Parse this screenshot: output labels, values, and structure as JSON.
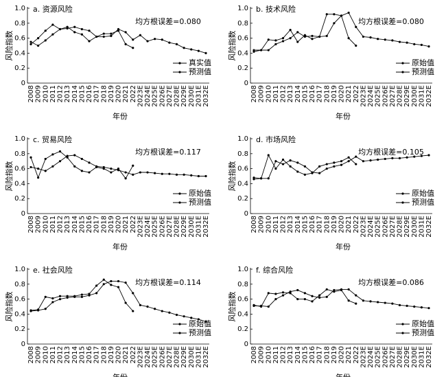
{
  "chart_data": [
    {
      "type": "line",
      "title": "a. 资源风险",
      "annotation": "均方根误差=0.080",
      "x_label": "年份",
      "y_label": "风险指数",
      "categories": [
        "2008",
        "2009",
        "2010",
        "2011",
        "2012",
        "2013",
        "2014",
        "2015",
        "2016",
        "2017",
        "2018",
        "2019",
        "2020",
        "2021",
        "2022",
        "2023E",
        "2024E",
        "2025E",
        "2026E",
        "2027E",
        "2028E",
        "2029E",
        "2030E",
        "2031E",
        "2032E"
      ],
      "series": [
        {
          "name": "真实值",
          "color": "#000000",
          "values": [
            0.52,
            0.6,
            0.7,
            0.78,
            0.72,
            0.75,
            0.68,
            0.65,
            0.56,
            0.62,
            0.66,
            0.66,
            0.7,
            0.52,
            0.47,
            null,
            null,
            null,
            null,
            null,
            null,
            null,
            null,
            null,
            null
          ]
        },
        {
          "name": "预测值",
          "color": "#000000",
          "values": [
            0.55,
            0.5,
            0.57,
            0.65,
            0.72,
            0.73,
            0.75,
            0.72,
            0.7,
            0.62,
            0.62,
            0.63,
            0.72,
            0.68,
            0.58,
            0.64,
            0.56,
            0.59,
            0.58,
            0.54,
            0.52,
            0.47,
            0.45,
            0.43,
            0.4
          ]
        }
      ],
      "ylim": [
        0,
        1
      ],
      "yticks": [
        0,
        0.2,
        0.4,
        0.6,
        0.8,
        {
          "value": 1,
          "label": "1.0"
        }
      ],
      "legend": "lower right"
    },
    {
      "type": "line",
      "title": "b. 技术风险",
      "annotation": "均方根误差=0.080",
      "x_label": "年份",
      "y_label": "风险指数",
      "categories": [
        "2008",
        "2009",
        "2010",
        "2011",
        "2012",
        "2013",
        "2014",
        "2015",
        "2016",
        "2017",
        "2018",
        "2019",
        "2020",
        "2021",
        "2022",
        "2023E",
        "2024E",
        "2025E",
        "2026E",
        "2027E",
        "2028E",
        "2029E",
        "2030E",
        "2031E",
        "2032E"
      ],
      "series": [
        {
          "name": "原始值",
          "color": "#000000",
          "values": [
            0.44,
            0.44,
            0.58,
            0.57,
            0.6,
            0.71,
            0.55,
            0.64,
            0.59,
            0.62,
            0.92,
            0.92,
            0.9,
            0.6,
            0.5,
            null,
            null,
            null,
            null,
            null,
            null,
            null,
            null,
            null,
            null
          ]
        },
        {
          "name": "预测值",
          "color": "#000000",
          "values": [
            0.42,
            0.44,
            0.44,
            0.52,
            0.56,
            0.6,
            0.68,
            0.62,
            0.63,
            0.62,
            0.63,
            0.8,
            0.9,
            0.94,
            0.75,
            0.62,
            0.61,
            0.59,
            0.58,
            0.57,
            0.55,
            0.54,
            0.52,
            0.51,
            0.49
          ]
        }
      ],
      "ylim": [
        0,
        1
      ],
      "yticks": [
        0,
        0.2,
        0.4,
        0.6,
        0.8,
        {
          "value": 1,
          "label": "1.0"
        }
      ],
      "legend": "lower right"
    },
    {
      "type": "line",
      "title": "c. 贸易风险",
      "annotation": "均方根误差=0.117",
      "x_label": "年份",
      "y_label": "风险指数",
      "categories": [
        "2008",
        "2009",
        "2010",
        "2011",
        "2012",
        "2013",
        "2014",
        "2015",
        "2016",
        "2017",
        "2018",
        "2019",
        "2020",
        "2021",
        "2022",
        "2023E",
        "2024E",
        "2025E",
        "2026E",
        "2027E",
        "2028E",
        "2029E",
        "2030E",
        "2031E",
        "2032E"
      ],
      "series": [
        {
          "name": "原始值",
          "color": "#000000",
          "values": [
            0.75,
            0.48,
            0.73,
            0.79,
            0.83,
            0.75,
            0.63,
            0.57,
            0.55,
            0.62,
            0.6,
            0.55,
            0.6,
            0.47,
            0.64,
            null,
            null,
            null,
            null,
            null,
            null,
            null,
            null,
            null,
            null
          ]
        },
        {
          "name": "预测值",
          "color": "#000000",
          "values": [
            0.62,
            0.6,
            0.57,
            0.63,
            0.7,
            0.77,
            0.78,
            0.73,
            0.68,
            0.63,
            0.62,
            0.6,
            0.58,
            0.55,
            0.52,
            0.55,
            0.55,
            0.54,
            0.53,
            0.53,
            0.52,
            0.52,
            0.51,
            0.5,
            0.5
          ]
        }
      ],
      "ylim": [
        0,
        1
      ],
      "yticks": [
        0,
        0.2,
        0.4,
        0.6,
        0.8,
        {
          "value": 1,
          "label": "1.0"
        }
      ],
      "legend": "lower right"
    },
    {
      "type": "line",
      "title": "d. 市场风险",
      "annotation": "均方根误差=0.105",
      "x_label": "年份",
      "y_label": "风险指数",
      "categories": [
        "2008",
        "2009",
        "2010",
        "2011",
        "2012",
        "2013",
        "2014",
        "2015",
        "2016",
        "2017",
        "2018",
        "2019",
        "2020",
        "2021",
        "2022",
        "2023E",
        "2024E",
        "2025E",
        "2026E",
        "2027E",
        "2028E",
        "2029E",
        "2030E",
        "2031E",
        "2032E"
      ],
      "series": [
        {
          "name": "原始值",
          "color": "#000000",
          "values": [
            0.48,
            0.47,
            0.78,
            0.6,
            0.72,
            0.63,
            0.56,
            0.52,
            0.54,
            0.63,
            0.66,
            0.68,
            0.7,
            0.75,
            0.66,
            null,
            null,
            null,
            null,
            null,
            null,
            null,
            null,
            null,
            null
          ]
        },
        {
          "name": "预测值",
          "color": "#000000",
          "values": [
            0.46,
            0.47,
            0.47,
            0.7,
            0.66,
            0.71,
            0.68,
            0.63,
            0.55,
            0.54,
            0.6,
            0.63,
            0.65,
            0.7,
            0.76,
            0.7,
            0.71,
            0.72,
            0.73,
            0.74,
            0.74,
            0.75,
            0.76,
            0.77,
            0.78
          ]
        }
      ],
      "ylim": [
        0,
        1
      ],
      "yticks": [
        0,
        0.2,
        0.4,
        0.6,
        0.8,
        {
          "value": 1,
          "label": "1.0"
        }
      ],
      "legend": "lower right"
    },
    {
      "type": "line",
      "title": "e. 社会风险",
      "annotation": "均方根误差=0.114",
      "x_label": "年份",
      "y_label": "风险指数",
      "categories": [
        "2008",
        "2009",
        "2010",
        "2011",
        "2012",
        "2013",
        "2014",
        "2015",
        "2016",
        "2017",
        "2018",
        "2019",
        "2020",
        "2021",
        "2022",
        "2023E",
        "2024E",
        "2025E",
        "2026E",
        "2027E",
        "2028E",
        "2029E",
        "2030E",
        "2031E",
        "2032E"
      ],
      "series": [
        {
          "name": "原始值",
          "color": "#000000",
          "values": [
            0.45,
            0.46,
            0.63,
            0.61,
            0.64,
            0.64,
            0.64,
            0.66,
            0.67,
            0.78,
            0.86,
            0.79,
            0.76,
            0.55,
            0.44,
            null,
            null,
            null,
            null,
            null,
            null,
            null,
            null,
            null,
            null
          ]
        },
        {
          "name": "预测值",
          "color": "#000000",
          "values": [
            0.44,
            0.45,
            0.47,
            0.56,
            0.6,
            0.62,
            0.63,
            0.63,
            0.65,
            0.68,
            0.8,
            0.84,
            0.84,
            0.82,
            0.68,
            0.52,
            0.5,
            0.47,
            0.44,
            0.42,
            0.39,
            0.37,
            0.35,
            0.33,
            0.3
          ]
        }
      ],
      "ylim": [
        0,
        1
      ],
      "yticks": [
        0,
        0.2,
        0.4,
        0.6,
        0.8,
        {
          "value": 1,
          "label": "1.0"
        }
      ],
      "legend": "lower right"
    },
    {
      "type": "line",
      "title": "f. 综合风险",
      "annotation": "均方根误差=0.086",
      "x_label": "年份",
      "y_label": "风险指数",
      "categories": [
        "2008",
        "2009",
        "2010",
        "2011",
        "2012",
        "2013",
        "2014",
        "2015",
        "2016",
        "2017",
        "2018",
        "2019",
        "2020",
        "2021",
        "2022",
        "2023E",
        "2024E",
        "2025E",
        "2026E",
        "2027E",
        "2028E",
        "2029E",
        "2030E",
        "2031E",
        "2032E"
      ],
      "series": [
        {
          "name": "原始值",
          "color": "#000000",
          "values": [
            0.52,
            0.5,
            0.68,
            0.67,
            0.69,
            0.68,
            0.6,
            0.6,
            0.57,
            0.65,
            0.73,
            0.7,
            0.72,
            0.58,
            0.54,
            null,
            null,
            null,
            null,
            null,
            null,
            null,
            null,
            null,
            null
          ]
        },
        {
          "name": "预测值",
          "color": "#000000",
          "values": [
            0.51,
            0.51,
            0.5,
            0.6,
            0.65,
            0.7,
            0.72,
            0.68,
            0.64,
            0.62,
            0.63,
            0.72,
            0.73,
            0.73,
            0.65,
            0.58,
            0.57,
            0.56,
            0.55,
            0.54,
            0.52,
            0.51,
            0.5,
            0.49,
            0.48
          ]
        }
      ],
      "ylim": [
        0,
        1
      ],
      "yticks": [
        0,
        0.2,
        0.4,
        0.6,
        0.8,
        {
          "value": 1,
          "label": "1.0"
        }
      ],
      "legend": "lower right"
    }
  ]
}
